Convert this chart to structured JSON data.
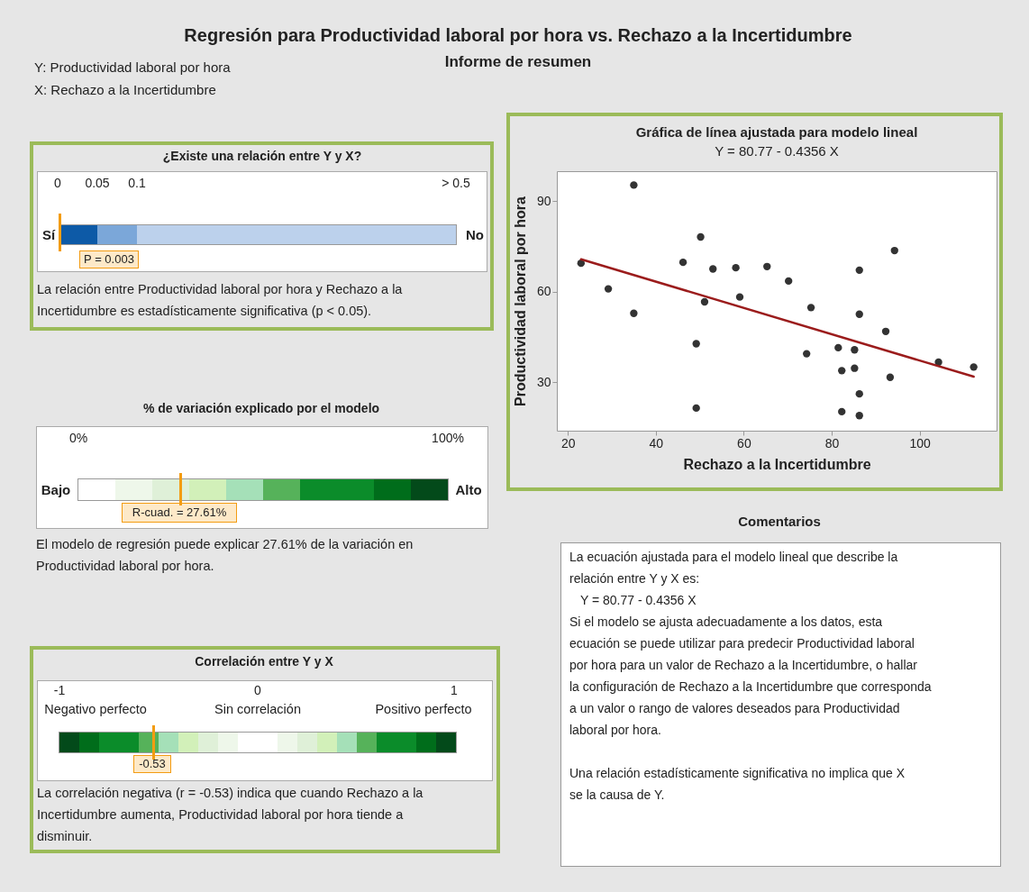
{
  "chart_data": [
    {
      "type": "other",
      "title": "Regresión para Productividad laboral por hora vs. Rechazo a la Incertidumbre",
      "subtitle": "Informe de resumen",
      "annotations": [
        "Y: Productividad laboral por hora",
        "X: Rechazo a la Incertidumbre"
      ]
    },
    {
      "type": "other",
      "title": "¿Existe una relación entre Y y X?",
      "annotations": [
        "0",
        "0.05",
        "0.1",
        "> 0.5",
        "Sí",
        "No",
        "P = 0.003",
        "La relación entre Productividad laboral por hora y Rechazo a la Incertidumbre es estadísticamente significativa (p < 0.05)."
      ]
    },
    {
      "type": "scatter",
      "title": "Gráfica de línea ajustada para modelo lineal",
      "subtitle": "Y = 80.77 - 0.4356 X",
      "xlabel": "Rechazo a la Incertidumbre",
      "ylabel": "Productividad laboral por hora",
      "xlim": [
        17.5,
        117.5
      ],
      "ylim": [
        14,
        100
      ],
      "xticks": [
        20,
        40,
        60,
        80,
        100
      ],
      "yticks": [
        30,
        60,
        90
      ],
      "series": [
        {
          "type": "scatter",
          "marker": "circle",
          "color": "#333333",
          "x": [
            23.0,
            35.0,
            29.2,
            35.0,
            46.2,
            50.2,
            49.2,
            49.2,
            51.1,
            53.0,
            58.2,
            59.1,
            65.3,
            70.2,
            74.3,
            75.3,
            81.5,
            82.3,
            82.3,
            85.2,
            85.2,
            86.3,
            86.3,
            86.3,
            86.3,
            92.3,
            93.3,
            94.3,
            104.3,
            112.3
          ],
          "values": [
            69.5,
            95.4,
            61.0,
            52.9,
            69.8,
            78.2,
            42.8,
            21.5,
            56.7,
            67.6,
            68.0,
            58.3,
            68.4,
            63.6,
            39.5,
            54.8,
            41.5,
            33.9,
            20.3,
            40.8,
            34.7,
            67.2,
            52.6,
            26.2,
            19.0,
            46.9,
            31.7,
            73.7,
            36.7,
            35.1
          ]
        },
        {
          "type": "line",
          "color": "#9b1c1c",
          "x": [
            23.0,
            112.3
          ],
          "values": [
            70.8,
            31.9
          ]
        }
      ]
    },
    {
      "type": "other",
      "title": "% de variación explicado por el modelo",
      "annotations": [
        "0%",
        "100%",
        "Bajo",
        "Alto",
        "R-cuad. = 27.61%",
        "El modelo de regresión puede explicar 27.61% de la variación en Productividad laboral por hora."
      ]
    },
    {
      "type": "other",
      "title": "Comentarios",
      "annotations": [
        "La ecuación ajustada para el modelo lineal que describe la relación entre Y y X es:",
        "Y = 80.77 - 0.4356 X",
        "Si el modelo se ajusta adecuadamente a los datos, esta ecuación se puede utilizar para predecir Productividad laboral por hora para un valor de Rechazo a la Incertidumbre, o hallar la configuración de Rechazo a la Incertidumbre que corresponda a un valor o rango de valores deseados para Productividad laboral por hora.",
        "Una relación estadísticamente significativa no implica que X se la causa de Y."
      ]
    },
    {
      "type": "other",
      "title": "Correlación entre Y y X",
      "annotations": [
        "-1",
        "0",
        "1",
        "Negativo perfecto",
        "Sin correlación",
        "Positivo perfecto",
        "-0.53",
        "La correlación negativa (r = -0.53) indica que cuando Rechazo a la Incertidumbre aumenta, Productividad laboral por hora tiende a disminuir."
      ]
    }
  ]
}
